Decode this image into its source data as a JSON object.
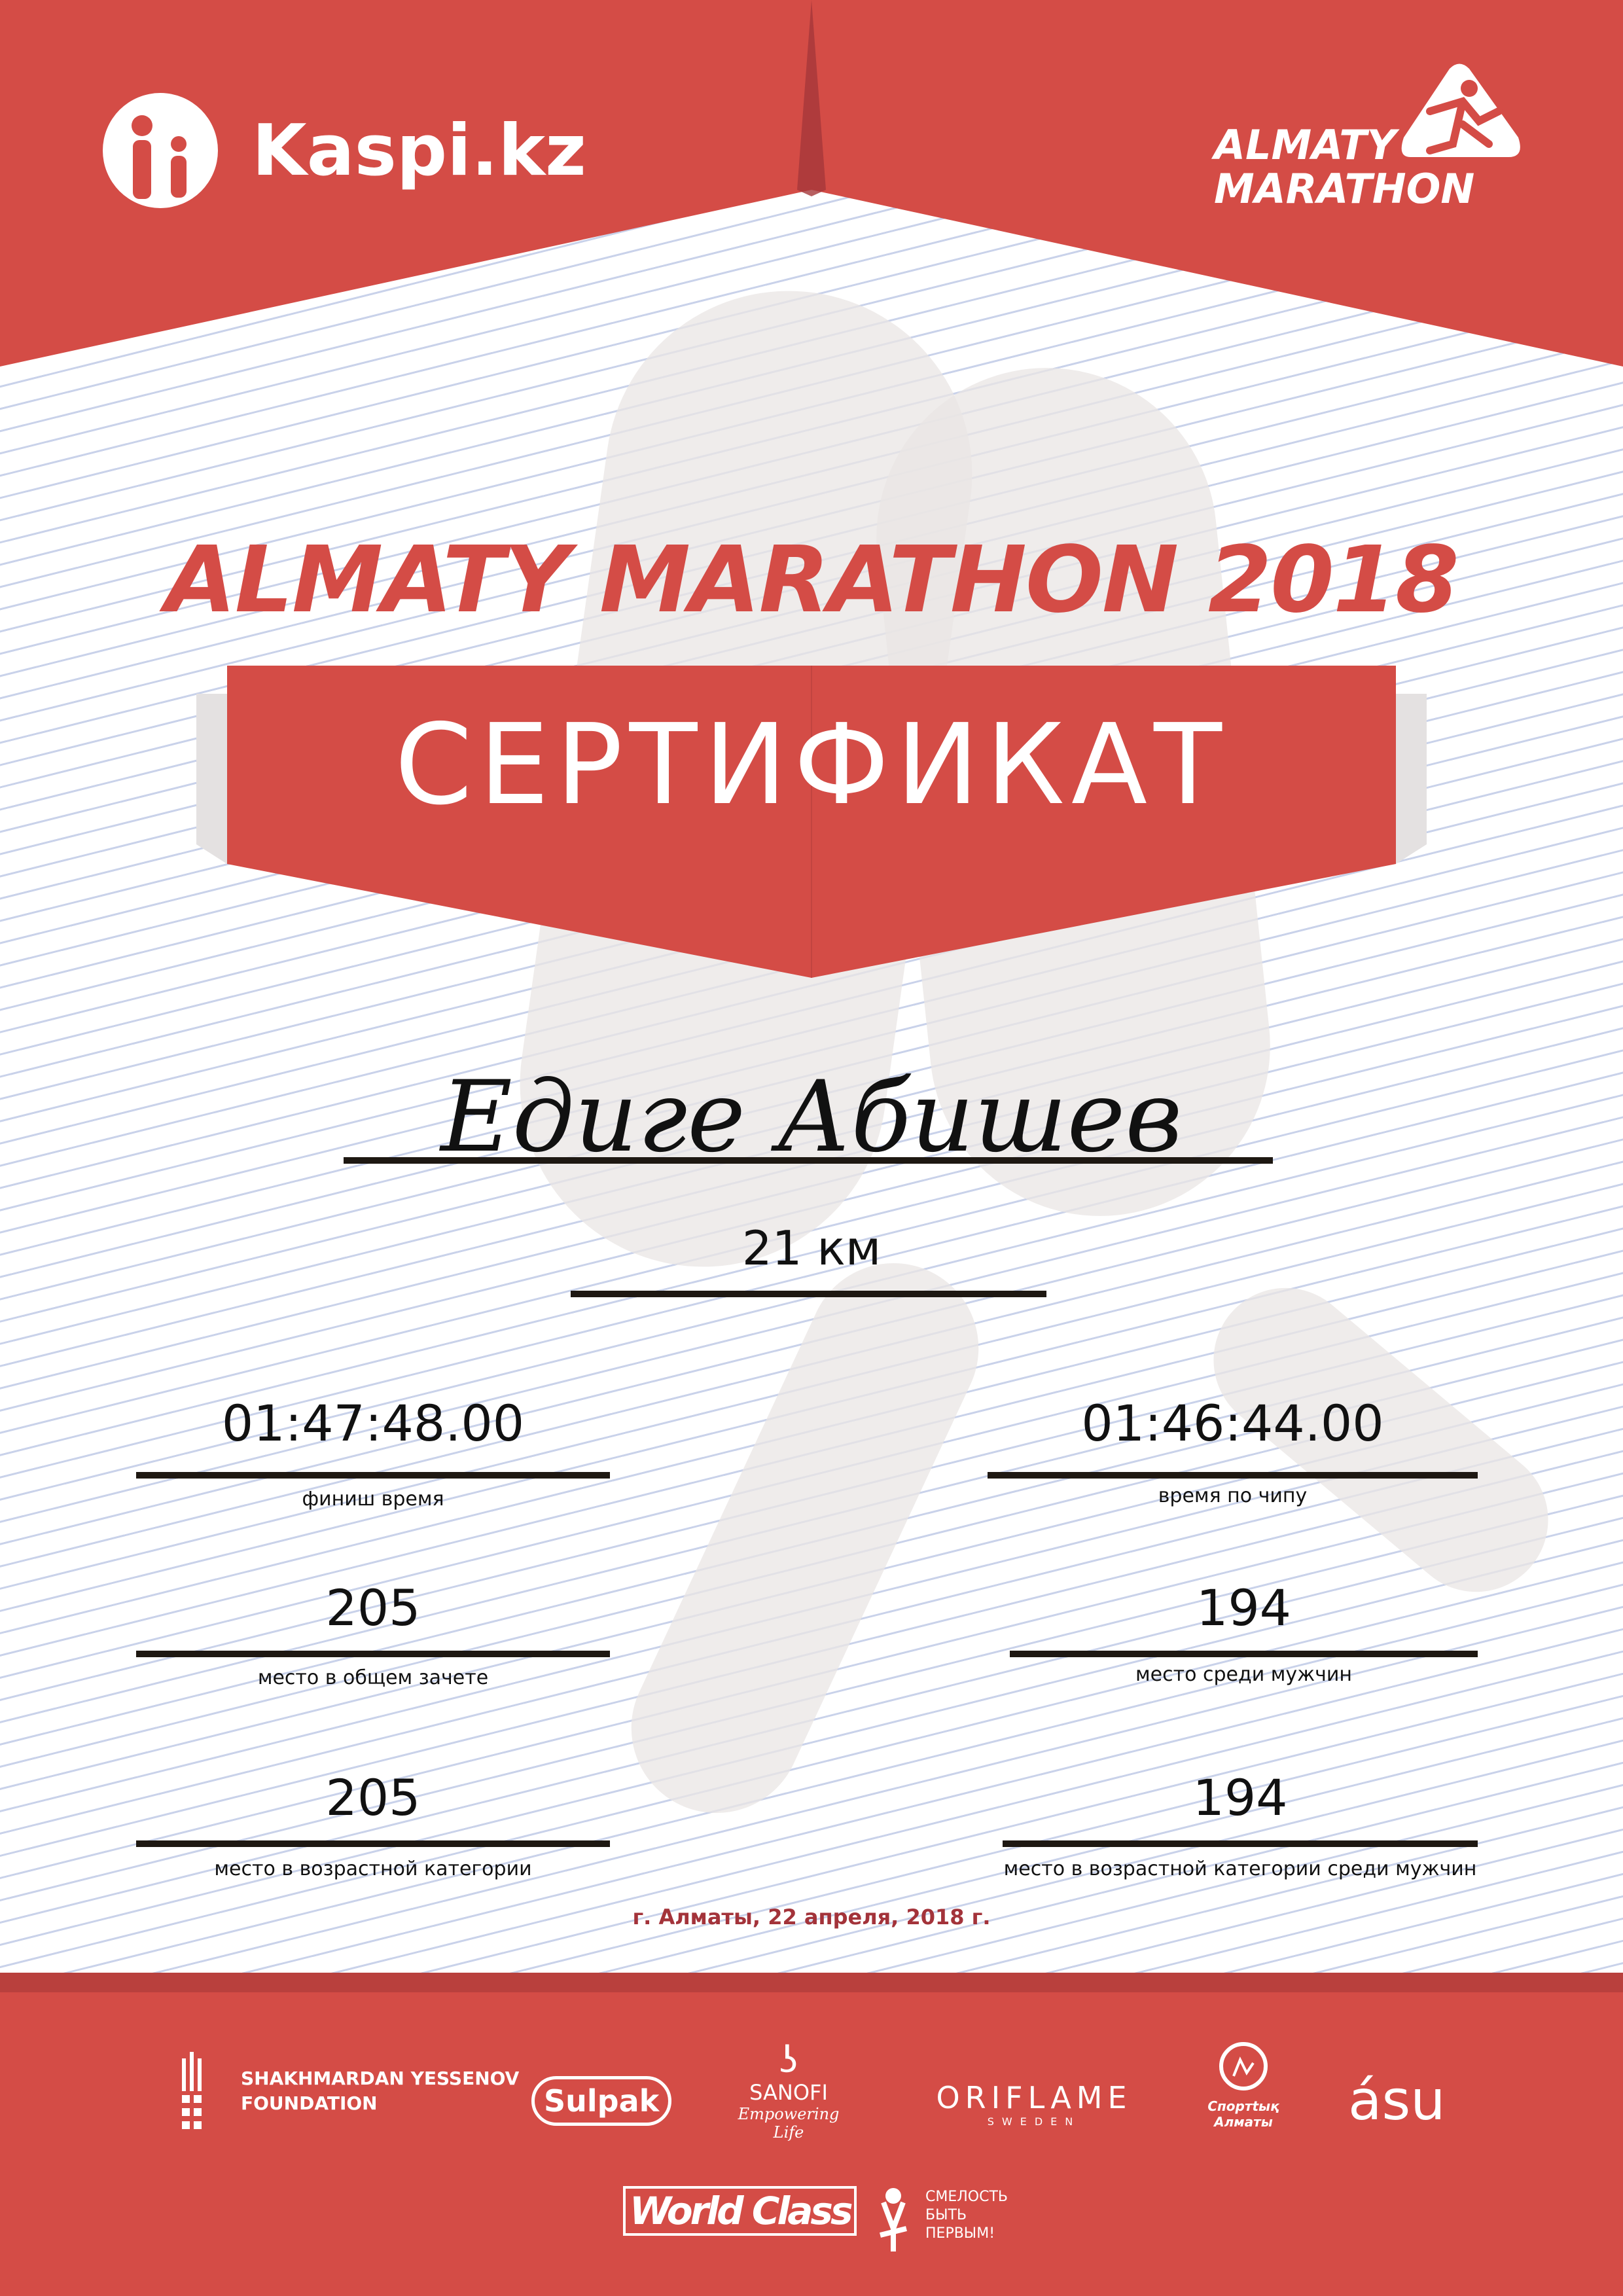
{
  "header": {
    "sponsor_logo": "Kaspi.kz",
    "event_logo": [
      "ALMATY",
      "MARATHON"
    ]
  },
  "title": "ALMATY MARATHON 2018",
  "banner": "СЕРТИФИКАТ",
  "participant": {
    "name": "Едиге Абишев",
    "distance": "21 км"
  },
  "results": [
    {
      "value": "01:47:48.00",
      "label": "финиш время"
    },
    {
      "value": "01:46:44.00",
      "label": "время по чипу"
    },
    {
      "value": "205",
      "label": "место в общем зачете"
    },
    {
      "value": "194",
      "label": "место среди мужчин"
    },
    {
      "value": "205",
      "label": "место в возрастной категории"
    },
    {
      "value": "194",
      "label": "место в возрастной категории среди мужчин"
    }
  ],
  "date": "г. Алматы, 22 апреля, 2018 г.",
  "partners": {
    "yessenov": [
      "SHAKHMARDAN YESSENOV",
      "FOUNDATION"
    ],
    "sulpak": "Sulpak",
    "sanofi": [
      "SANOFI",
      "Empowering Life"
    ],
    "oriflame": [
      "ORIFLAME",
      "SWEDEN"
    ],
    "sport_almaty": [
      "Спортtық",
      "Алматы"
    ],
    "asu": "ásu",
    "worldclass": "World Class",
    "fund": [
      "СМЕЛОСТЬ",
      "БЫТЬ",
      "ПЕРВЫМ!"
    ]
  },
  "colors": {
    "red": "#d44c46",
    "dark_red": "#a3333a",
    "date": "#a3333a"
  }
}
